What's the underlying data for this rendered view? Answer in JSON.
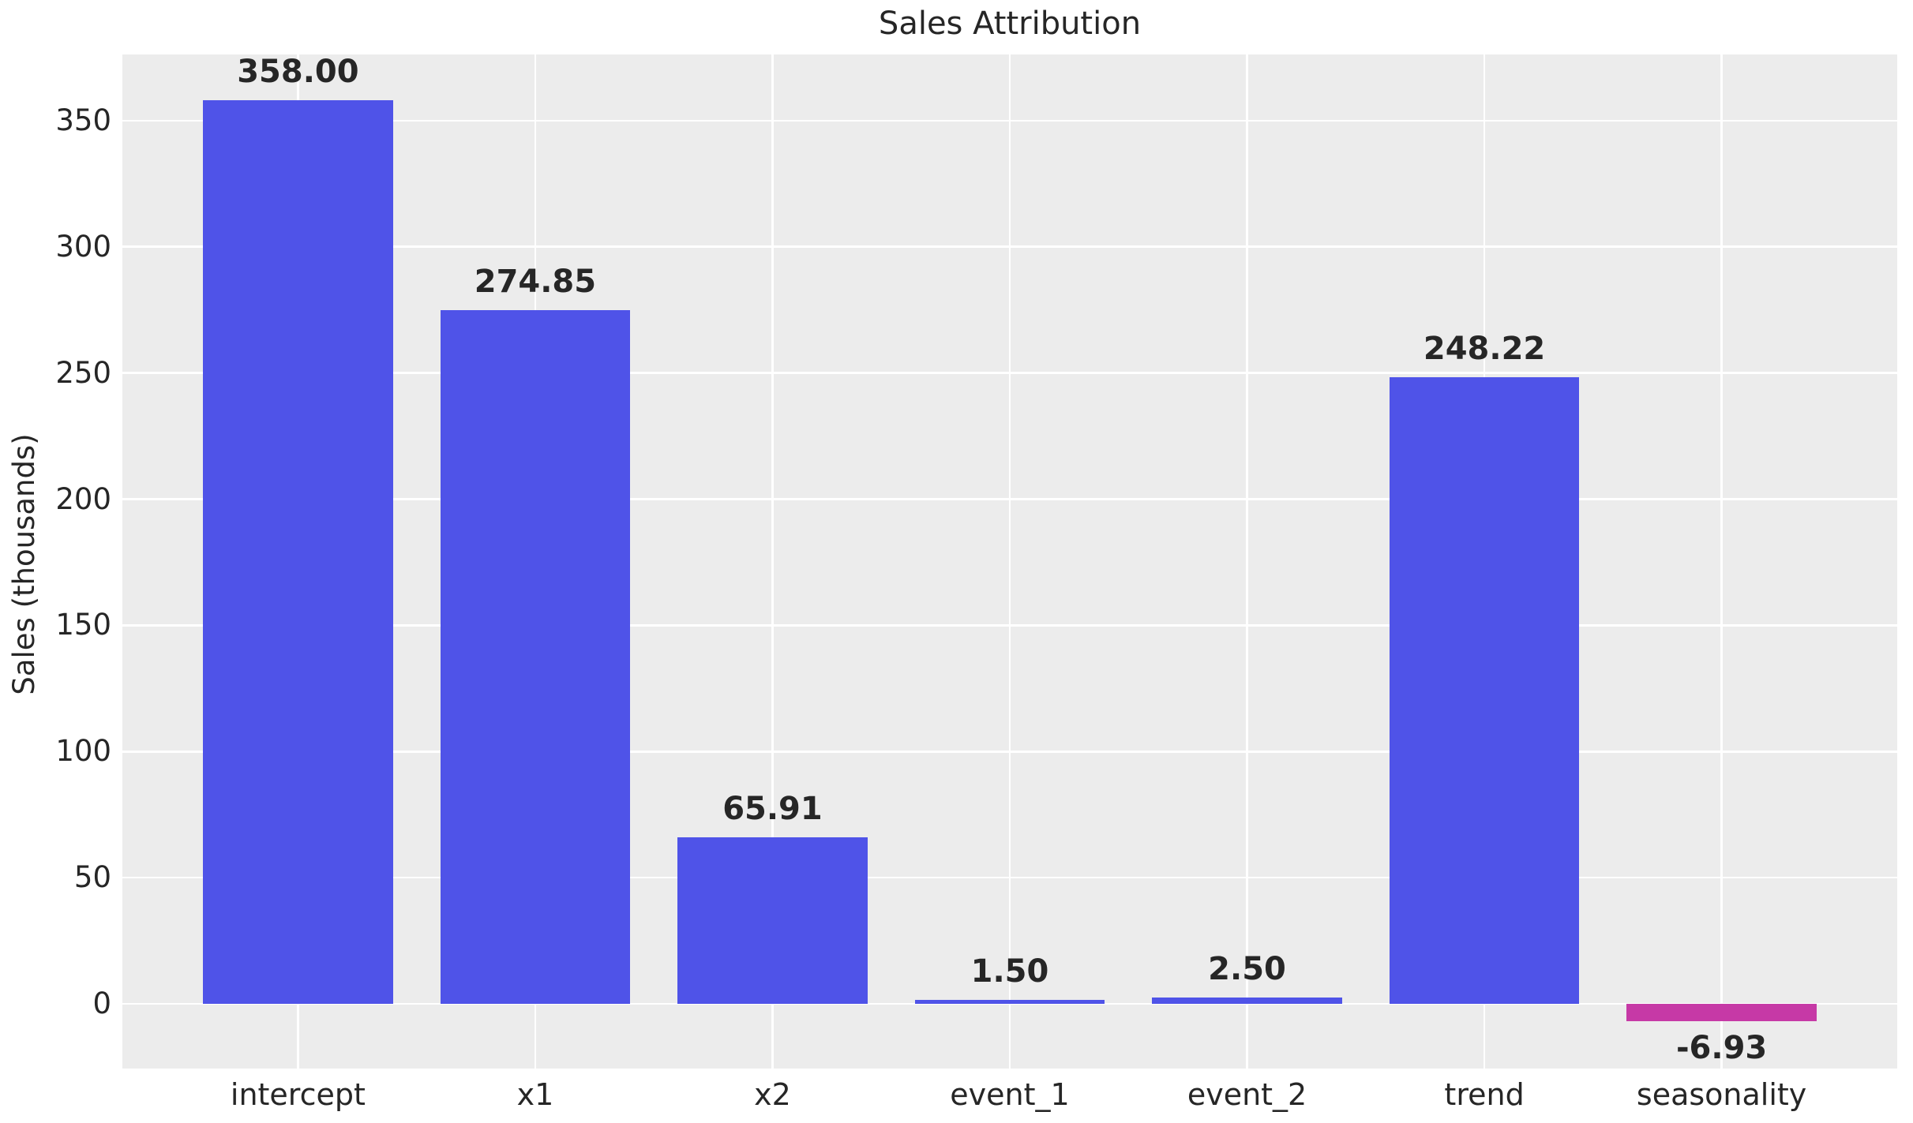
{
  "chart_data": {
    "type": "bar",
    "title": "Sales Attribution",
    "xlabel": "",
    "ylabel": "Sales (thousands)",
    "categories": [
      "intercept",
      "x1",
      "x2",
      "event_1",
      "event_2",
      "trend",
      "seasonality"
    ],
    "values": [
      358.0,
      274.85,
      65.91,
      1.5,
      2.5,
      248.22,
      -6.93
    ],
    "bar_value_labels": [
      "358.00",
      "274.85",
      "65.91",
      "1.50",
      "2.50",
      "248.22",
      "-6.93"
    ],
    "yticks": [
      0,
      50,
      100,
      150,
      200,
      250,
      300,
      350
    ],
    "ytick_labels": [
      "0",
      "50",
      "100",
      "150",
      "200",
      "250",
      "300",
      "350"
    ],
    "ylim": [
      -25.6,
      376.2
    ],
    "grid": "on",
    "legend_position": "none",
    "colors": {
      "positive_bar": "#4F53E8",
      "negative_bar": "#C639A6",
      "plot_background": "#ECECEC",
      "gridline": "#FFFFFF",
      "text": "#262626",
      "figure_background": "#FFFFFF"
    }
  }
}
